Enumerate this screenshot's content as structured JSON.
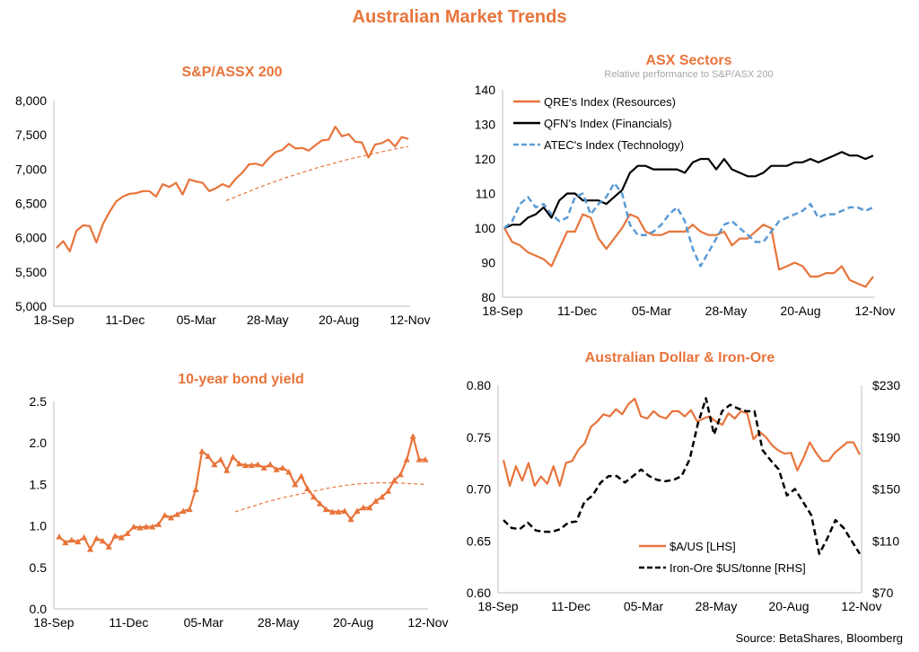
{
  "page": {
    "title": "Australian Market Trends",
    "source": "Source: BetaShares, Bloomberg",
    "colors": {
      "accent": "#e8743b",
      "black": "#000000",
      "blue": "#5b9bd5",
      "axis": "#bfbfbf"
    }
  },
  "chart_data": [
    {
      "id": "asx200",
      "type": "line",
      "title": "S&P/ASSX 200",
      "x_ticks": [
        "18-Sep",
        "11-Dec",
        "05-Mar",
        "28-May",
        "20-Aug",
        "12-Nov"
      ],
      "ylim": [
        5000,
        8000
      ],
      "y_ticks": [
        "5,000",
        "5,500",
        "6,000",
        "6,500",
        "7,000",
        "7,500",
        "8,000"
      ],
      "grid": false,
      "series": [
        {
          "style": "solid",
          "color": "#e8743b",
          "values": [
            5850,
            5950,
            5800,
            6100,
            6180,
            6170,
            5930,
            6200,
            6380,
            6530,
            6600,
            6640,
            6650,
            6680,
            6680,
            6600,
            6780,
            6740,
            6800,
            6630,
            6850,
            6820,
            6800,
            6680,
            6720,
            6780,
            6740,
            6860,
            6950,
            7070,
            7080,
            7050,
            7160,
            7250,
            7280,
            7370,
            7300,
            7310,
            7270,
            7350,
            7420,
            7430,
            7620,
            7480,
            7510,
            7400,
            7390,
            7170,
            7360,
            7380,
            7430,
            7330,
            7470,
            7440
          ]
        },
        {
          "style": "dashed",
          "color": "#e8743b",
          "values": [
            6540,
            6630,
            6720,
            6800,
            6880,
            6950,
            7020,
            7080,
            7140,
            7190,
            7240,
            7290,
            7330
          ]
        }
      ]
    },
    {
      "id": "sectors",
      "type": "line",
      "title": "ASX Sectors",
      "subtitle": "Relative performance to S&P/ASX 200",
      "x_ticks": [
        "18-Sep",
        "11-Dec",
        "05-Mar",
        "28-May",
        "20-Aug",
        "12-Nov"
      ],
      "ylim": [
        80,
        140
      ],
      "y_ticks": [
        "80",
        "90",
        "100",
        "110",
        "120",
        "130",
        "140"
      ],
      "legend_position": "top-left",
      "series": [
        {
          "name": "QRE's Index (Resources)",
          "style": "solid",
          "color": "#e8743b",
          "values": [
            100,
            96,
            95,
            93,
            92,
            91,
            89,
            94,
            99,
            99,
            104,
            103,
            97,
            94,
            97,
            100,
            104,
            103,
            99,
            98,
            98,
            99,
            99,
            99,
            101,
            99,
            98,
            98,
            99,
            95,
            97,
            97,
            99,
            101,
            100,
            88,
            89,
            90,
            89,
            86,
            86,
            87,
            87,
            89,
            85,
            84,
            83,
            86
          ]
        },
        {
          "name": "QFN's Index (Financials)",
          "style": "solid",
          "color": "#000000",
          "values": [
            100,
            101,
            101,
            103,
            104,
            106,
            103,
            108,
            110,
            110,
            108,
            108,
            108,
            107,
            109,
            111,
            116,
            118,
            118,
            117,
            117,
            117,
            117,
            116,
            119,
            120,
            120,
            117,
            120,
            117,
            116,
            115,
            115,
            116,
            118,
            118,
            118,
            119,
            119,
            120,
            119,
            120,
            121,
            122,
            121,
            121,
            120,
            121
          ]
        },
        {
          "name": "ATEC's Index (Technology)",
          "style": "dashed",
          "color": "#5b9bd5",
          "values": [
            100,
            102,
            107,
            109,
            106,
            107,
            104,
            102,
            103,
            109,
            110,
            104,
            107,
            109,
            113,
            110,
            101,
            98,
            98,
            99,
            101,
            104,
            106,
            102,
            94,
            89,
            93,
            97,
            101,
            102,
            100,
            98,
            96,
            96,
            99,
            102,
            103,
            104,
            105,
            107,
            103,
            104,
            104,
            105,
            106,
            106,
            105,
            106
          ]
        }
      ]
    },
    {
      "id": "bond",
      "type": "line",
      "title": "10-year bond yield",
      "x_ticks": [
        "18-Sep",
        "11-Dec",
        "05-Mar",
        "28-May",
        "20-Aug",
        "12-Nov"
      ],
      "ylim": [
        0,
        2.5
      ],
      "y_ticks": [
        "0.0",
        "0.5",
        "1.0",
        "1.5",
        "2.0",
        "2.5"
      ],
      "series": [
        {
          "style": "solid-triangle",
          "color": "#e8743b",
          "values": [
            0.87,
            0.8,
            0.83,
            0.81,
            0.86,
            0.72,
            0.85,
            0.82,
            0.75,
            0.88,
            0.86,
            0.91,
            0.99,
            0.98,
            0.99,
            0.99,
            1.02,
            1.13,
            1.1,
            1.14,
            1.18,
            1.2,
            1.44,
            1.9,
            1.84,
            1.74,
            1.8,
            1.67,
            1.83,
            1.75,
            1.73,
            1.73,
            1.74,
            1.7,
            1.74,
            1.68,
            1.7,
            1.65,
            1.5,
            1.6,
            1.45,
            1.35,
            1.27,
            1.2,
            1.17,
            1.17,
            1.18,
            1.08,
            1.18,
            1.22,
            1.22,
            1.3,
            1.35,
            1.42,
            1.55,
            1.62,
            1.8,
            2.08,
            1.8,
            1.8
          ]
        },
        {
          "style": "dashed",
          "color": "#e8743b",
          "values": [
            1.17,
            1.23,
            1.29,
            1.34,
            1.38,
            1.42,
            1.46,
            1.49,
            1.51,
            1.52,
            1.52,
            1.51,
            1.5
          ]
        }
      ]
    },
    {
      "id": "aud_iron",
      "type": "line",
      "title": "Australian Dollar & Iron-Ore",
      "x_ticks": [
        "18-Sep",
        "11-Dec",
        "05-Mar",
        "28-May",
        "20-Aug",
        "12-Nov"
      ],
      "ylim_left": [
        0.6,
        0.8
      ],
      "ylim_right": [
        70,
        230
      ],
      "y_ticks_left": [
        "0.60",
        "0.65",
        "0.70",
        "0.75",
        "0.80"
      ],
      "y_ticks_right": [
        "$70",
        "$110",
        "$150",
        "$190",
        "$230"
      ],
      "legend_position": "bottom-center",
      "series": [
        {
          "name": "$A/US [LHS]",
          "style": "solid",
          "color": "#e8743b",
          "axis": "left",
          "values": [
            0.728,
            0.703,
            0.722,
            0.708,
            0.725,
            0.703,
            0.712,
            0.705,
            0.722,
            0.703,
            0.725,
            0.727,
            0.738,
            0.744,
            0.76,
            0.765,
            0.772,
            0.77,
            0.777,
            0.772,
            0.782,
            0.787,
            0.77,
            0.768,
            0.775,
            0.77,
            0.768,
            0.775,
            0.775,
            0.77,
            0.776,
            0.765,
            0.768,
            0.77,
            0.765,
            0.762,
            0.773,
            0.768,
            0.775,
            0.773,
            0.748,
            0.755,
            0.75,
            0.742,
            0.737,
            0.734,
            0.735,
            0.718,
            0.73,
            0.745,
            0.735,
            0.727,
            0.727,
            0.735,
            0.74,
            0.745,
            0.745,
            0.733
          ]
        },
        {
          "name": "Iron-Ore $US/tonne [RHS]",
          "style": "dashed",
          "color": "#000000",
          "axis": "right",
          "values": [
            126,
            120,
            119,
            124,
            118,
            117,
            117,
            119,
            124,
            125,
            140,
            145,
            155,
            160,
            160,
            155,
            160,
            165,
            160,
            157,
            156,
            157,
            160,
            173,
            200,
            220,
            192,
            210,
            215,
            212,
            210,
            210,
            180,
            172,
            165,
            145,
            150,
            140,
            130,
            100,
            112,
            126,
            120,
            110,
            100
          ]
        }
      ]
    }
  ]
}
